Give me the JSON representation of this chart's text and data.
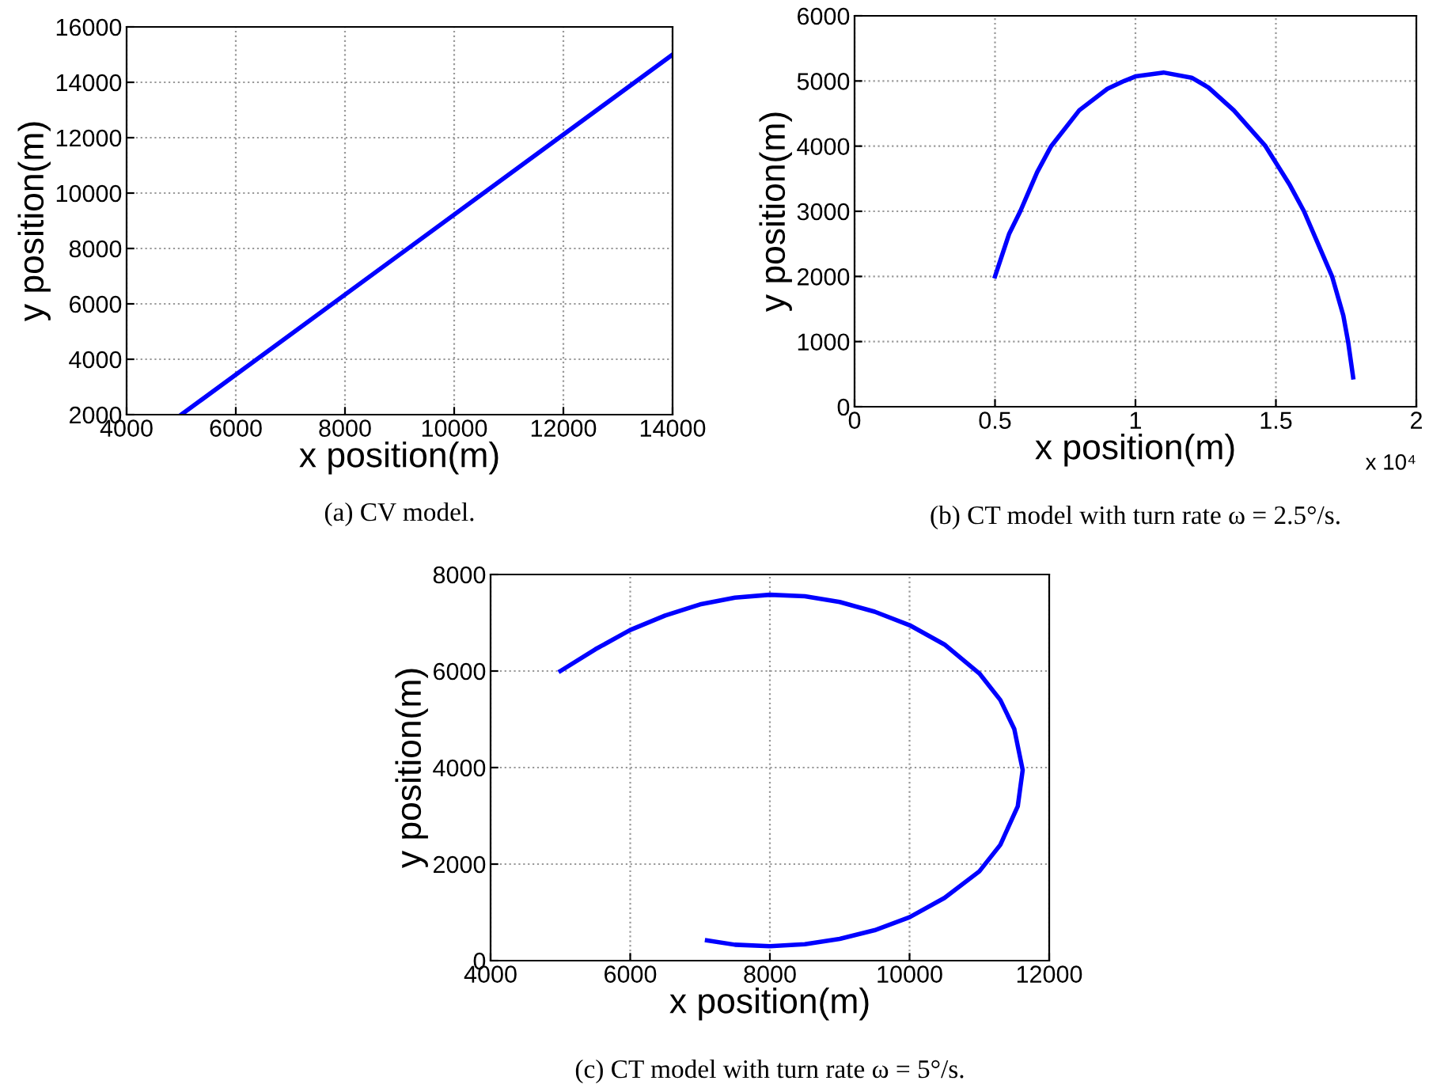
{
  "chart_data": [
    {
      "type": "line",
      "title": "(a) CV model.",
      "xlabel": "x position(m)",
      "ylabel": "y position(m)",
      "xlim": [
        4000,
        14000
      ],
      "ylim": [
        2000,
        16000
      ],
      "xticks": [
        4000,
        6000,
        8000,
        10000,
        12000,
        14000
      ],
      "yticks": [
        2000,
        4000,
        6000,
        8000,
        10000,
        12000,
        14000,
        16000
      ],
      "grid": true,
      "series": [
        {
          "color": "#0000ff",
          "x": [
            5000,
            14000
          ],
          "values": [
            2000,
            15000
          ]
        }
      ]
    },
    {
      "type": "line",
      "title": "(b) CT model with turn rate ω = 2.5°/s.",
      "xlabel": "x position(m)",
      "ylabel": "y position(m)",
      "annotations": [
        "x 10⁴"
      ],
      "xlim": [
        0,
        2
      ],
      "ylim": [
        0,
        6000
      ],
      "xticks": [
        0,
        0.5,
        1,
        1.5,
        2
      ],
      "yticks": [
        0,
        1000,
        2000,
        3000,
        4000,
        5000,
        6000
      ],
      "grid": true,
      "series": [
        {
          "color": "#0000ff",
          "x": [
            0.5,
            0.55,
            0.59,
            0.65,
            0.7,
            0.8,
            0.9,
            0.96,
            1.0,
            1.1,
            1.2,
            1.26,
            1.35,
            1.463,
            1.55,
            1.6,
            1.65,
            1.7,
            1.74,
            1.757,
            1.775
          ],
          "values": [
            2000,
            2650,
            3000,
            3600,
            4000,
            4550,
            4880,
            5000,
            5070,
            5130,
            5050,
            4900,
            4550,
            4000,
            3400,
            3000,
            2500,
            2000,
            1400,
            1000,
            450
          ]
        }
      ]
    },
    {
      "type": "line",
      "title": "(c) CT model with turn rate ω = 5°/s.",
      "xlabel": "x position(m)",
      "ylabel": "y position(m)",
      "xlim": [
        4000,
        12000
      ],
      "ylim": [
        0,
        8000
      ],
      "xticks": [
        4000,
        6000,
        8000,
        10000,
        12000
      ],
      "yticks": [
        0,
        2000,
        4000,
        6000,
        8000
      ],
      "grid": true,
      "series": [
        {
          "color": "#0000ff",
          "x": [
            5000,
            5500,
            6000,
            6500,
            7000,
            7500,
            8000,
            8500,
            9000,
            9500,
            10000,
            10500,
            11000,
            11300,
            11500,
            11620,
            11550,
            11300,
            11000,
            10500,
            10000,
            9500,
            9000,
            8500,
            8000,
            7500,
            7100
          ],
          "values": [
            6000,
            6450,
            6850,
            7150,
            7380,
            7520,
            7580,
            7550,
            7430,
            7230,
            6950,
            6550,
            5950,
            5400,
            4800,
            3950,
            3200,
            2400,
            1850,
            1300,
            900,
            630,
            450,
            340,
            300,
            330,
            420
          ]
        }
      ]
    }
  ]
}
